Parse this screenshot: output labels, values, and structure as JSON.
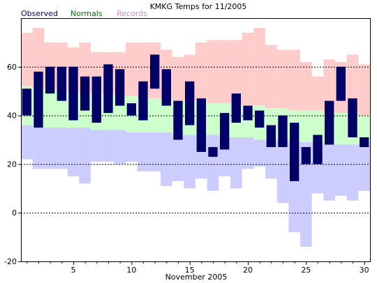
{
  "chart_data": {
    "type": "bar",
    "title": "KMKG Temps for 11/2005",
    "xlabel": "November 2005",
    "ylabel": "",
    "xlim": [
      0.5,
      30.5
    ],
    "ylim": [
      -20,
      80
    ],
    "x_ticks": [
      5,
      10,
      15,
      20,
      25,
      30
    ],
    "y_ticks": [
      -20,
      0,
      20,
      40,
      60
    ],
    "gridlines_dashed": [
      0,
      20,
      40,
      60
    ],
    "legend": [
      {
        "name": "Observed",
        "color": "#000066"
      },
      {
        "name": "Normals",
        "color": "#007700"
      },
      {
        "name": "Records",
        "color": "#dd88bb"
      }
    ],
    "days": [
      1,
      2,
      3,
      4,
      5,
      6,
      7,
      8,
      9,
      10,
      11,
      12,
      13,
      14,
      15,
      16,
      17,
      18,
      19,
      20,
      21,
      22,
      23,
      24,
      25,
      26,
      27,
      28,
      29,
      30
    ],
    "series": [
      {
        "name": "Records",
        "color": "#ffcccc",
        "record_high": [
          74,
          76,
          70,
          70,
          68,
          70,
          66,
          66,
          66,
          70,
          70,
          70,
          67,
          64,
          65,
          70,
          71,
          71,
          71,
          74,
          76,
          69,
          67,
          67,
          62,
          56,
          63,
          62,
          65,
          61
        ],
        "record_low": [
          22,
          18,
          18,
          18,
          15,
          12,
          21,
          21,
          20,
          21,
          17,
          17,
          11,
          13,
          10,
          14,
          9,
          15,
          10,
          18,
          19,
          14,
          4,
          -8,
          -14,
          8,
          5,
          7,
          5,
          9
        ]
      },
      {
        "name": "Normals",
        "color": "#ccffcc",
        "normal_high": [
          52,
          51,
          51,
          50,
          50,
          49,
          49,
          49,
          48,
          48,
          47,
          47,
          47,
          46,
          46,
          46,
          45,
          45,
          44,
          44,
          44,
          43,
          43,
          42,
          42,
          42,
          41,
          41,
          41,
          40
        ],
        "normal_low": [
          36,
          35,
          35,
          35,
          35,
          35,
          34,
          34,
          34,
          33,
          33,
          33,
          33,
          32,
          32,
          32,
          32,
          31,
          31,
          31,
          30,
          30,
          30,
          29,
          29,
          29,
          28,
          28,
          28,
          28
        ]
      },
      {
        "name": "Observed",
        "color": "#000066",
        "high": [
          51,
          58,
          60,
          60,
          60,
          56,
          56,
          61,
          59,
          45,
          54,
          65,
          59,
          46,
          54,
          47,
          27,
          41,
          49,
          44,
          42,
          36,
          40,
          37,
          27,
          32,
          46,
          60,
          47,
          31
        ],
        "low": [
          40,
          35,
          49,
          46,
          38,
          42,
          37,
          41,
          44,
          40,
          38,
          51,
          44,
          30,
          36,
          25,
          23,
          26,
          37,
          38,
          35,
          27,
          27,
          13,
          20,
          20,
          28,
          46,
          31,
          27
        ]
      }
    ]
  }
}
